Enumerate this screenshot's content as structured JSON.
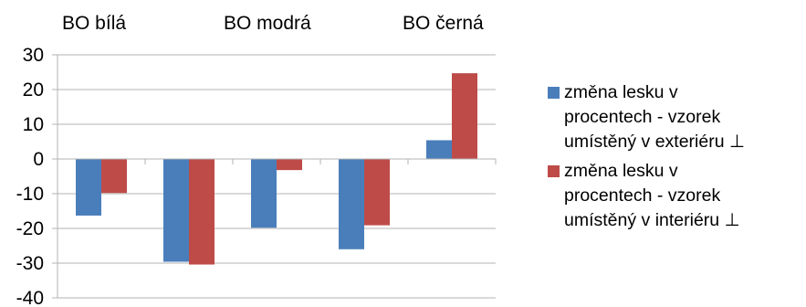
{
  "chart_data": {
    "type": "bar",
    "categories": [
      "",
      "",
      "",
      "",
      ""
    ],
    "top_labels": [
      "BO bílá",
      "BO modrá",
      "BO černá"
    ],
    "series": [
      {
        "name": "změna lesku v procentech - vzorek umístěný v exteriéru ⊥",
        "values": [
          -16.3,
          -29.6,
          -19.8,
          -26.0,
          5.4
        ],
        "color": "#4a7ebb"
      },
      {
        "name": "změna lesku v procentech - vzorek umístěný v interiéru ⊥",
        "values": [
          -9.8,
          -30.4,
          -3.2,
          -19.1,
          24.7
        ],
        "color": "#be4b48"
      }
    ],
    "yticks": [
      30,
      20,
      10,
      0,
      -10,
      -20,
      -30,
      -40
    ],
    "ylim": [
      -40,
      30
    ],
    "grid": true,
    "legend_position": "right"
  },
  "legend": {
    "exterior_lines": [
      "změna lesku v",
      "procentech - vzorek",
      "umístěný v exteriéru ⊥"
    ],
    "interior_lines": [
      "změna lesku v",
      "procentech - vzorek",
      "umístěný v interiéru ⊥"
    ]
  }
}
